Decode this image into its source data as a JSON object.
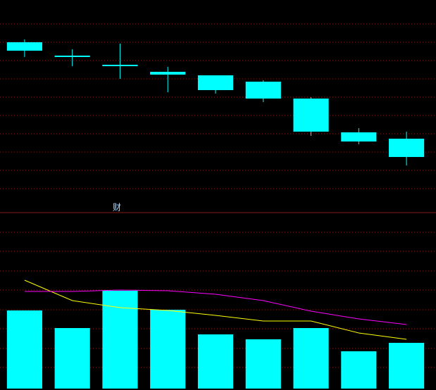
{
  "chart_data": [
    {
      "type": "candlestick",
      "categories": [
        null,
        null,
        null,
        null,
        null,
        null,
        null,
        null,
        null
      ],
      "open": [
        240,
        220,
        208,
        198,
        193,
        184,
        160,
        112,
        103
      ],
      "high": [
        244,
        230,
        238,
        205,
        193,
        186,
        162,
        118,
        113
      ],
      "low": [
        219,
        206,
        188,
        169,
        167,
        155,
        107,
        95,
        65
      ],
      "close": [
        228,
        220,
        206,
        194,
        172,
        160,
        113,
        99,
        77
      ],
      "color": "#00ffff",
      "annotation": "财",
      "ylim": [
        0,
        300
      ],
      "yticks": [
        32,
        58,
        84,
        110,
        136,
        162,
        188,
        214,
        240,
        266
      ],
      "grid": true
    },
    {
      "type": "bar",
      "categories": [
        null,
        null,
        null,
        null,
        null,
        null,
        null,
        null,
        null
      ],
      "values": [
        111,
        86,
        139,
        112,
        77,
        70,
        86,
        53,
        65
      ],
      "color": "#00ffff",
      "series": [
        {
          "color": "#ffff00",
          "values": [
            154,
            125,
            115,
            111,
            104,
            96,
            96,
            79,
            70
          ]
        },
        {
          "color": "#ff00ff",
          "values": [
            138,
            138,
            140,
            139,
            134,
            125,
            110,
            99,
            91
          ]
        }
      ],
      "ylim": [
        0,
        250
      ],
      "yticks": [
        30,
        57,
        85,
        112,
        140,
        167,
        195,
        222
      ],
      "grid": true
    }
  ]
}
